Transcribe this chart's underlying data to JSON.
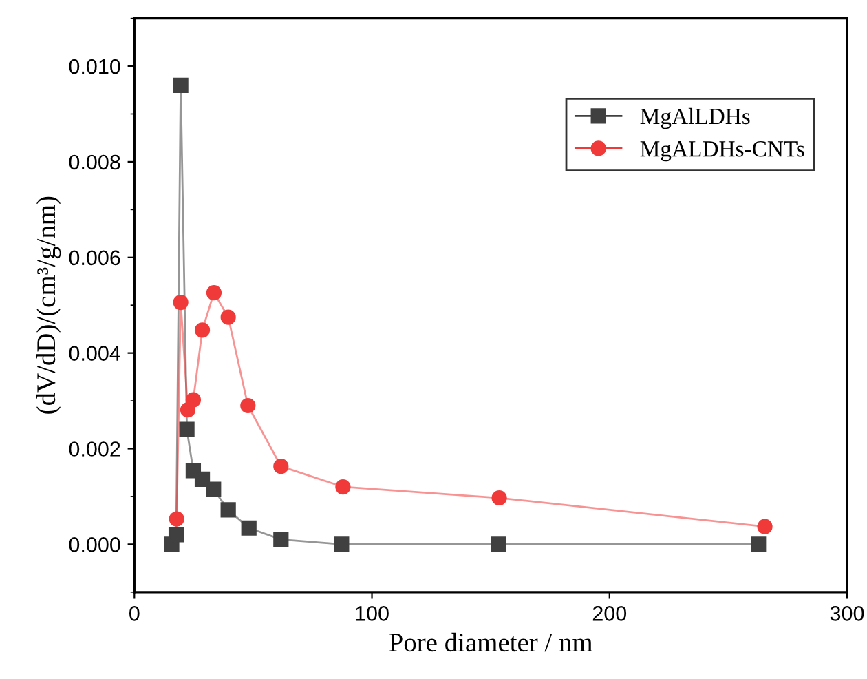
{
  "chart_data": {
    "type": "line",
    "xlabel": "Pore diameter / nm",
    "ylabel": "(dV/dD)/(cm³/g/nm)",
    "xlim": [
      0,
      300
    ],
    "xticks": [
      0,
      100,
      200,
      300
    ],
    "ylim": [
      -0.001,
      0.011
    ],
    "yticks": [
      {
        "value": 0,
        "label": "0.000"
      },
      {
        "value": 0.002,
        "label": "0.002"
      },
      {
        "value": 0.004,
        "label": "0.004"
      },
      {
        "value": 0.006,
        "label": "0.006"
      },
      {
        "value": 0.008,
        "label": "0.008"
      },
      {
        "value": 0.01,
        "label": "0.010"
      }
    ],
    "legend": "top right",
    "grid": false,
    "series": [
      {
        "name": "MgAlLDHs",
        "color": "#404040",
        "marker": "square",
        "x": [
          15.7,
          17.6,
          19.5,
          22.1,
          24.8,
          28.6,
          33.3,
          39.5,
          48.2,
          61.7,
          87.2,
          153.4,
          262.7
        ],
        "values": [
          0.0,
          0.0002,
          0.0096,
          0.0024,
          0.00154,
          0.00136,
          0.00115,
          0.00072,
          0.00034,
          0.0001,
          0.0,
          0.0,
          0.0
        ]
      },
      {
        "name": "MgALDHs-CNTs",
        "color": "#f03a3a",
        "marker": "circle",
        "x": [
          17.8,
          19.5,
          22.5,
          24.8,
          28.6,
          33.5,
          39.5,
          47.8,
          61.7,
          87.8,
          153.6,
          265.4
        ],
        "values": [
          0.00053,
          0.00506,
          0.00281,
          0.00302,
          0.00448,
          0.00526,
          0.00475,
          0.0029,
          0.00163,
          0.0012,
          0.00097,
          0.00037
        ]
      }
    ]
  }
}
